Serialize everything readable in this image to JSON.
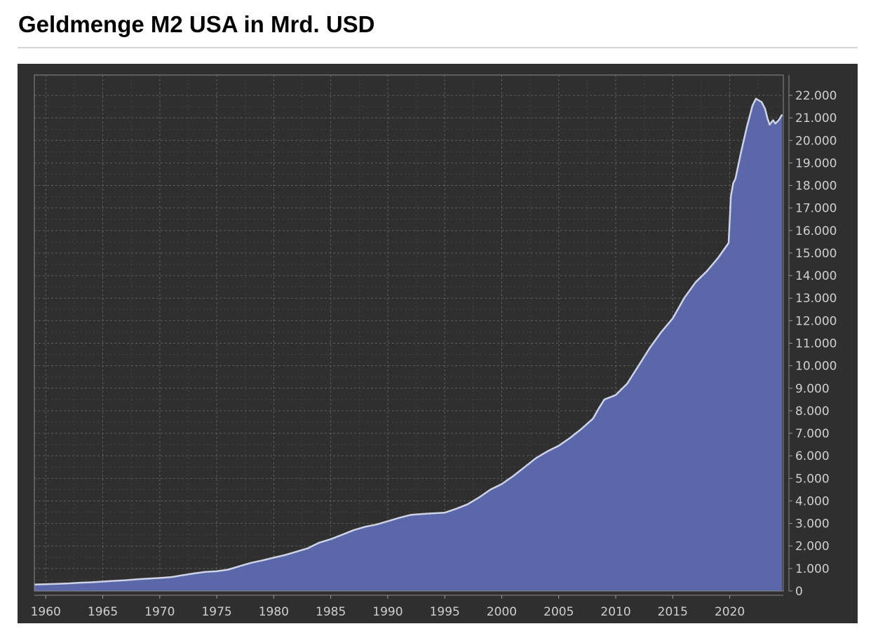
{
  "page": {
    "title": "Geldmenge M2 USA in Mrd. USD"
  },
  "colors": {
    "panel_background": "#2f2f2f",
    "area_fill": "#5a67a8",
    "series_line": "#cfd3e6",
    "grid": "#5e5e5e",
    "axis_text": "#cfcfcf"
  },
  "chart_data": {
    "type": "area",
    "title": "Geldmenge M2 USA in Mrd. USD",
    "xlabel": "",
    "ylabel": "",
    "xlim": [
      1959,
      2024.7
    ],
    "ylim": [
      0,
      22000
    ],
    "grid": true,
    "y_axis_side": "right",
    "x_ticks": [
      1960,
      1965,
      1970,
      1975,
      1980,
      1985,
      1990,
      1995,
      2000,
      2005,
      2010,
      2015,
      2020
    ],
    "x_tick_labels": [
      "1960",
      "1965",
      "1970",
      "1975",
      "1980",
      "1985",
      "1990",
      "1995",
      "2000",
      "2005",
      "2010",
      "2015",
      "2020"
    ],
    "y_ticks": [
      0,
      1000,
      2000,
      3000,
      4000,
      5000,
      6000,
      7000,
      8000,
      9000,
      10000,
      11000,
      12000,
      13000,
      14000,
      15000,
      16000,
      17000,
      18000,
      19000,
      20000,
      21000,
      22000
    ],
    "y_tick_labels": [
      "0",
      "1.000",
      "2.000",
      "3.000",
      "4.000",
      "5.000",
      "6.000",
      "7.000",
      "8.000",
      "9.000",
      "10.000",
      "11.000",
      "12.000",
      "13.000",
      "14.000",
      "15.000",
      "16.000",
      "17.000",
      "18.000",
      "19.000",
      "20.000",
      "21.000",
      "22.000"
    ],
    "series": [
      {
        "name": "M2",
        "x": [
          1959,
          1960,
          1961,
          1962,
          1963,
          1964,
          1965,
          1966,
          1967,
          1968,
          1969,
          1970,
          1971,
          1972,
          1973,
          1974,
          1975,
          1976,
          1977,
          1978,
          1979,
          1980,
          1981,
          1982,
          1983,
          1984,
          1985,
          1986,
          1987,
          1988,
          1989,
          1990,
          1991,
          1992,
          1993,
          1994,
          1995,
          1996,
          1997,
          1998,
          1999,
          2000,
          2001,
          2002,
          2003,
          2004,
          2005,
          2006,
          2007,
          2008,
          2008.5,
          2009,
          2010,
          2011,
          2011.5,
          2012,
          2013,
          2014,
          2015,
          2016,
          2017,
          2018,
          2019,
          2019.9,
          2020.1,
          2020.3,
          2020.5,
          2021,
          2021.5,
          2022,
          2022.3,
          2022.8,
          2023.1,
          2023.3,
          2023.5,
          2023.8,
          2024,
          2024.3,
          2024.6
        ],
        "values": [
          290,
          305,
          320,
          340,
          370,
          390,
          420,
          450,
          480,
          520,
          550,
          580,
          620,
          700,
          780,
          850,
          880,
          950,
          1100,
          1250,
          1360,
          1480,
          1600,
          1750,
          1900,
          2150,
          2300,
          2500,
          2700,
          2850,
          2950,
          3100,
          3250,
          3380,
          3420,
          3450,
          3480,
          3650,
          3850,
          4150,
          4500,
          4750,
          5100,
          5500,
          5900,
          6200,
          6450,
          6800,
          7200,
          7650,
          8100,
          8500,
          8700,
          9200,
          9600,
          10000,
          10800,
          11500,
          12100,
          13000,
          13700,
          14200,
          14800,
          15450,
          17500,
          18100,
          18300,
          19500,
          20600,
          21550,
          21850,
          21700,
          21400,
          21000,
          20700,
          20900,
          20750,
          20900,
          21150
        ]
      }
    ]
  }
}
